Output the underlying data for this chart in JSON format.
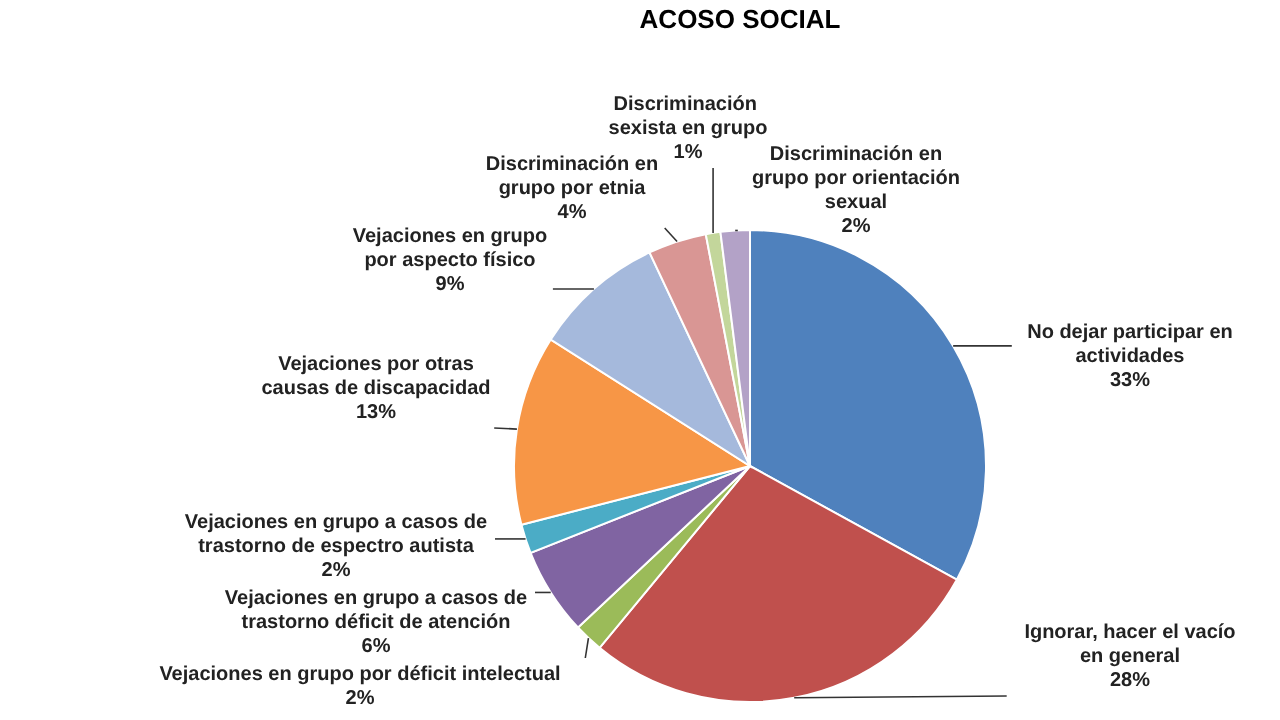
{
  "chart_data": {
    "type": "pie",
    "title": "ACOSO SOCIAL",
    "categories": [
      "No dejar participar en actividades",
      "Ignorar, hacer el vacío en general",
      "Vejaciones en grupo por déficit intelectual",
      "Vejaciones en grupo a casos de trastorno déficit de atención",
      "Vejaciones en grupo a casos de trastorno de espectro autista",
      "Vejaciones por  otras causas de discapacidad",
      "Vejaciones en grupo por aspecto físico",
      "Discriminación en grupo por  etnia",
      "Discriminación  sexista en grupo",
      "Discriminación en grupo  por orientación sexual"
    ],
    "values": [
      33,
      28,
      2,
      6,
      2,
      13,
      9,
      4,
      1,
      2
    ],
    "value_labels": [
      "33%",
      "28%",
      "2%",
      "6%",
      "2%",
      "13%",
      "9%",
      "4%",
      "1%",
      "2%"
    ],
    "colors": [
      "#4f81bd",
      "#c0504d",
      "#9bbb59",
      "#8064a2",
      "#4bacc6",
      "#f79646",
      "#a5b9dc",
      "#d99694",
      "#c3d69b",
      "#b3a2c7"
    ],
    "legend": false
  }
}
